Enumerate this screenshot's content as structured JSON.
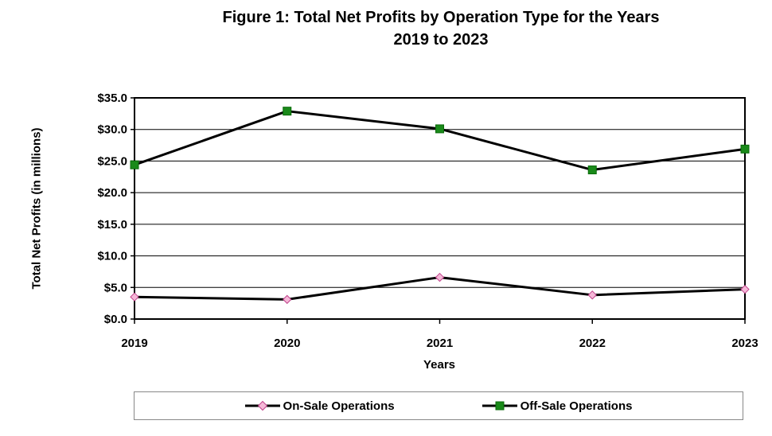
{
  "chart_data": {
    "type": "line",
    "title_line1": "Figure 1:  Total Net Profits by Operation Type for the Years",
    "title_line2": "2019 to 2023",
    "xlabel": "Years",
    "ylabel": "Total Net Profits (in millions)",
    "x": [
      "2019",
      "2020",
      "2021",
      "2022",
      "2023"
    ],
    "ylim": [
      0,
      35
    ],
    "yticks": [
      0,
      5,
      10,
      15,
      20,
      25,
      30,
      35
    ],
    "ytick_labels": [
      "$0.0",
      "$5.0",
      "$10.0",
      "$15.0",
      "$20.0",
      "$25.0",
      "$30.0",
      "$35.0"
    ],
    "grid": true,
    "legend_position": "bottom",
    "series": [
      {
        "name": "On-Sale Operations",
        "values": [
          3.5,
          3.1,
          6.6,
          3.8,
          4.7
        ],
        "marker": "diamond",
        "marker_color": "#f5b8d8",
        "marker_edge": "#c0408a",
        "line_color": "#000000"
      },
      {
        "name": "Off-Sale Operations",
        "values": [
          24.4,
          32.9,
          30.1,
          23.6,
          26.9
        ],
        "marker": "square",
        "marker_color": "#1a8a1a",
        "marker_edge": "#0a6a0a",
        "line_color": "#000000"
      }
    ]
  }
}
